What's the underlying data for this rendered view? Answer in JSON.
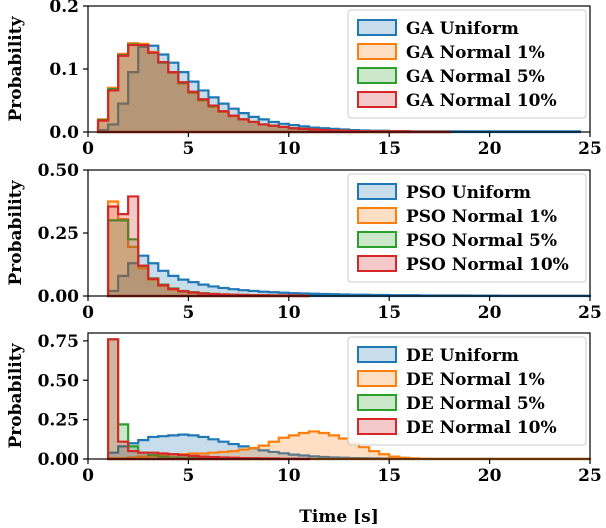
{
  "chart_data": {
    "type": "histogram",
    "xlabel": "Time [s]",
    "xlim": [
      0,
      25
    ],
    "xticks": [
      0,
      5,
      10,
      15,
      20,
      25
    ],
    "bin_width": 0.5,
    "colors": [
      "#1f77b4",
      "#ff7f0e",
      "#2ca02c",
      "#d62728"
    ],
    "panels": [
      {
        "ylabel": "Probability",
        "ylim": [
          0,
          0.2
        ],
        "yticks": [
          "0.0",
          "0.1",
          "0.2"
        ],
        "ytick_values": [
          0,
          0.1,
          0.2
        ],
        "legend": [
          "GA Uniform",
          "GA Normal 1%",
          "GA Normal 5%",
          "GA Normal 10%"
        ],
        "series": [
          {
            "name": "GA Uniform",
            "x_start": 0.5,
            "values": [
              0.003,
              0.012,
              0.045,
              0.095,
              0.135,
              0.137,
              0.123,
              0.11,
              0.095,
              0.08,
              0.066,
              0.055,
              0.045,
              0.037,
              0.03,
              0.024,
              0.02,
              0.016,
              0.013,
              0.011,
              0.009,
              0.007,
              0.006,
              0.005,
              0.004,
              0.003,
              0.0025,
              0.002,
              0.002,
              0.0015,
              0.0015,
              0.001,
              0.001,
              0.001,
              0.001,
              0.001,
              0.001,
              0.001,
              0.001,
              0.001,
              0.001,
              0.001,
              0.001,
              0.001,
              0.001,
              0.001,
              0.001,
              0.001
            ]
          },
          {
            "name": "GA Normal 1%",
            "x_start": 0.5,
            "values": [
              0.02,
              0.07,
              0.124,
              0.141,
              0.14,
              0.127,
              0.111,
              0.094,
              0.077,
              0.062,
              0.05,
              0.04,
              0.032,
              0.025,
              0.02,
              0.016,
              0.012,
              0.01,
              0.008,
              0.006,
              0.005,
              0.004,
              0.003,
              0.0025,
              0.002,
              0.0015,
              0.001,
              0.001,
              0.001,
              0.001,
              0.001,
              0.0005,
              0.0005,
              0.0005,
              0.0005
            ]
          },
          {
            "name": "GA Normal 5%",
            "x_start": 0.5,
            "values": [
              0.019,
              0.068,
              0.122,
              0.139,
              0.138,
              0.126,
              0.11,
              0.095,
              0.078,
              0.063,
              0.051,
              0.041,
              0.033,
              0.026,
              0.02,
              0.016,
              0.012,
              0.01,
              0.008,
              0.006,
              0.005,
              0.004,
              0.003,
              0.0025,
              0.002,
              0.0015,
              0.001,
              0.001,
              0.001,
              0.001,
              0.001,
              0.0005,
              0.0005,
              0.0005,
              0.0005
            ]
          },
          {
            "name": "GA Normal 10%",
            "x_start": 0.5,
            "values": [
              0.018,
              0.066,
              0.121,
              0.138,
              0.138,
              0.126,
              0.111,
              0.095,
              0.079,
              0.064,
              0.052,
              0.042,
              0.033,
              0.026,
              0.02,
              0.016,
              0.012,
              0.01,
              0.008,
              0.006,
              0.005,
              0.004,
              0.003,
              0.0025,
              0.002,
              0.0015,
              0.001,
              0.001,
              0.001,
              0.001,
              0.001,
              0.0005,
              0.0005,
              0.0005,
              0.0005
            ]
          }
        ]
      },
      {
        "ylabel": "Probability",
        "ylim": [
          0,
          0.5
        ],
        "yticks": [
          "0.00",
          "0.25",
          "0.50"
        ],
        "ytick_values": [
          0,
          0.25,
          0.5
        ],
        "legend": [
          "PSO Uniform",
          "PSO Normal 1%",
          "PSO Normal 5%",
          "PSO Normal 10%"
        ],
        "series": [
          {
            "name": "PSO Uniform",
            "x_start": 1.0,
            "values": [
              0.02,
              0.08,
              0.13,
              0.16,
              0.13,
              0.1,
              0.08,
              0.065,
              0.055,
              0.045,
              0.038,
              0.032,
              0.027,
              0.023,
              0.02,
              0.017,
              0.015,
              0.013,
              0.011,
              0.01,
              0.009,
              0.008,
              0.007,
              0.006,
              0.005,
              0.005,
              0.004,
              0.004,
              0.003,
              0.003,
              0.003,
              0.002,
              0.002,
              0.002,
              0.002,
              0.002,
              0.0015,
              0.0015,
              0.0015,
              0.001,
              0.001,
              0.001,
              0.001,
              0.001,
              0.001,
              0.001,
              0.001,
              0.001
            ]
          },
          {
            "name": "PSO Normal 1%",
            "x_start": 1.0,
            "values": [
              0.375,
              0.305,
              0.195,
              0.11,
              0.065,
              0.04,
              0.025,
              0.018,
              0.013,
              0.01,
              0.008,
              0.006,
              0.005,
              0.004,
              0.003,
              0.003,
              0.002,
              0.002,
              0.002,
              0.001
            ]
          },
          {
            "name": "PSO Normal 5%",
            "x_start": 1.0,
            "values": [
              0.3,
              0.3,
              0.225,
              0.12,
              0.07,
              0.045,
              0.03,
              0.02,
              0.015,
              0.011,
              0.008,
              0.006,
              0.005,
              0.004,
              0.003,
              0.003,
              0.002,
              0.002,
              0.002,
              0.001
            ]
          },
          {
            "name": "PSO Normal 10%",
            "x_start": 1.0,
            "values": [
              0.355,
              0.325,
              0.395,
              0.12,
              0.068,
              0.043,
              0.028,
              0.019,
              0.014,
              0.01,
              0.008,
              0.006,
              0.005,
              0.004,
              0.003,
              0.003,
              0.002,
              0.002,
              0.002,
              0.001
            ]
          }
        ]
      },
      {
        "ylabel": "Probability",
        "ylim": [
          0,
          0.8
        ],
        "yticks": [
          "0.00",
          "0.25",
          "0.50",
          "0.75"
        ],
        "ytick_values": [
          0,
          0.25,
          0.5,
          0.75
        ],
        "legend": [
          "DE Uniform",
          "DE Normal 1%",
          "DE Normal 5%",
          "DE Normal 10%"
        ],
        "series": [
          {
            "name": "DE Uniform",
            "x_start": 1.0,
            "values": [
              0.04,
              0.08,
              0.1,
              0.12,
              0.14,
              0.145,
              0.15,
              0.155,
              0.15,
              0.14,
              0.125,
              0.11,
              0.095,
              0.08,
              0.068,
              0.055,
              0.045,
              0.036,
              0.028,
              0.022,
              0.017,
              0.013,
              0.01,
              0.008,
              0.006,
              0.005,
              0.004,
              0.003,
              0.0025,
              0.002,
              0.0015,
              0.001,
              0.001,
              0.001,
              0.001,
              0.001,
              0.001,
              0.001,
              0.001,
              0.001,
              0.001,
              0.001,
              0.001,
              0.001,
              0.001,
              0.001,
              0.001,
              0.001
            ]
          },
          {
            "name": "DE Normal 1%",
            "x_start": 1.0,
            "values": [
              0.005,
              0.005,
              0.01,
              0.015,
              0.02,
              0.025,
              0.03,
              0.03,
              0.035,
              0.035,
              0.04,
              0.045,
              0.05,
              0.06,
              0.07,
              0.085,
              0.11,
              0.135,
              0.15,
              0.165,
              0.175,
              0.165,
              0.15,
              0.13,
              0.1,
              0.075,
              0.05,
              0.03,
              0.015,
              0.008,
              0.004,
              0.002,
              0.001,
              0.001,
              0.001,
              0.001,
              0.001,
              0.001,
              0.001,
              0.001,
              0.001,
              0.001,
              0.001,
              0.001,
              0.001,
              0.001,
              0.001,
              0.001
            ]
          },
          {
            "name": "DE Normal 5%",
            "x_start": 1.0,
            "values": [
              0.76,
              0.22,
              0.08,
              0.04,
              0.025,
              0.015,
              0.01,
              0.008,
              0.006,
              0.005,
              0.004,
              0.003,
              0.002,
              0.002,
              0.001,
              0.001,
              0.001
            ]
          },
          {
            "name": "DE Normal 10%",
            "x_start": 1.0,
            "values": [
              0.76,
              0.11,
              0.05,
              0.04,
              0.04,
              0.035,
              0.03,
              0.025,
              0.02,
              0.015,
              0.012,
              0.01,
              0.008,
              0.006,
              0.005,
              0.004,
              0.003,
              0.002,
              0.002,
              0.001
            ]
          }
        ]
      }
    ]
  }
}
